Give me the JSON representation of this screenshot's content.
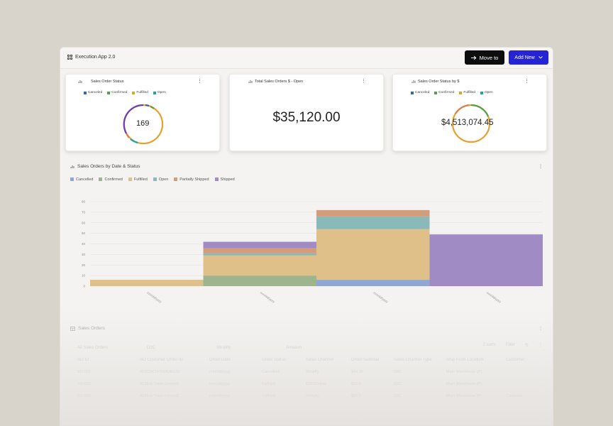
{
  "app": {
    "title": "Execution App 2.0",
    "move_label": "Move to",
    "add_label": "Add New"
  },
  "colors": {
    "canceled": "#2f63c4",
    "confirmed": "#52a04a",
    "fulfilled": "#e7a02c",
    "open": "#1aa7a3",
    "partially_shipped": "#d9824f",
    "shipped": "#7a5cc4"
  },
  "cards": [
    {
      "title": "Sales Order Status",
      "legend": [
        "Canceled",
        "Confirmed",
        "Fulfilled",
        "Open"
      ],
      "center": "169"
    },
    {
      "title": "Total Sales Orders $ - Open",
      "value": "$35,120.00"
    },
    {
      "title": "Sales Order Status by $",
      "legend": [
        "Canceled",
        "Confirmed",
        "Fulfilled",
        "Open"
      ],
      "center": "$4,513,074.45"
    }
  ],
  "sales_chart": {
    "title": "Sales Orders by Date & Status",
    "menu": "⋮"
  },
  "chart_data": {
    "type": "area",
    "title": "Sales Orders by Date & Status",
    "categories": [
      "mm/dd/yyyy",
      "mm/dd/yyyy",
      "mm/dd/yyyy",
      "mm/dd/yyyy"
    ],
    "ylim": [
      0,
      80
    ],
    "yticks": [
      0,
      10,
      20,
      30,
      40,
      50,
      60,
      70,
      80
    ],
    "stacked": true,
    "grid": true,
    "legend_position": "top-left",
    "series": [
      {
        "name": "Cancelled",
        "values": [
          0,
          0,
          6,
          0
        ]
      },
      {
        "name": "Confirmed",
        "values": [
          0,
          10,
          0,
          0
        ]
      },
      {
        "name": "Fulfilled",
        "values": [
          6,
          19,
          48,
          0
        ]
      },
      {
        "name": "Open",
        "values": [
          0,
          2,
          12,
          0
        ]
      },
      {
        "name": "Partially Shipped",
        "values": [
          0,
          5,
          6,
          0
        ]
      },
      {
        "name": "Shipped",
        "values": [
          0,
          6,
          0,
          49
        ]
      }
    ]
  },
  "table": {
    "title": "Sales Orders",
    "tabs": [
      "All Sales Orders",
      "D2C",
      "Shopify",
      "Amazon"
    ],
    "tools": [
      "2 sorts",
      "Filter",
      "⇅",
      "⋮"
    ],
    "columns": [
      "SO ID",
      "SO Customer Order ID",
      "Order Date",
      "Order Status",
      "Sales Channel",
      "Order Subtotal",
      "Sales Channel Type",
      "Ship From Location",
      "Customer"
    ],
    "rows": [
      [
        "SO-001",
        "#D2CRCH-SHADE133",
        "mm/dd/yyyy",
        "Cancelled",
        "Shopify",
        "$44.00",
        "D2C",
        "Main Warehouse (P)",
        ""
      ],
      [
        "SO-002",
        "#Z2Ext-Trade-Lemon1",
        "mm/dd/yyyy",
        "Fulfilled",
        "D2C/Online",
        "$32.0",
        "D2C",
        "Main Warehouse (P)",
        ""
      ],
      [
        "SO-003",
        "#Z2Ext-Trade-Lemon2",
        "mm/dd/yyyy",
        "Fulfilled",
        "Shopify",
        "$32.0",
        "D2C",
        "Main Warehouse (P)",
        "Customer"
      ]
    ]
  }
}
